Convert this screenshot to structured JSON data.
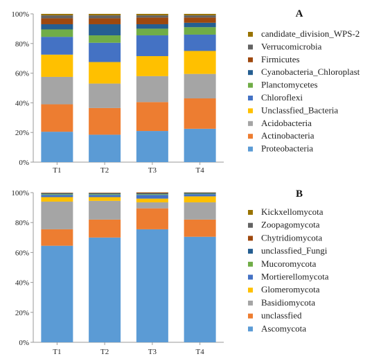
{
  "chart_data": [
    {
      "type": "bar",
      "stacked": true,
      "panel_label": "A",
      "categories": [
        "T1",
        "T2",
        "T3",
        "T4"
      ],
      "ylim": [
        0,
        100
      ],
      "y_ticks": [
        "0%",
        "20%",
        "40%",
        "60%",
        "80%",
        "100%"
      ],
      "grid": false,
      "legend_position": "right",
      "series": [
        {
          "name": "Proteobacteria",
          "color": "#5B9BD5",
          "values": [
            20.5,
            18.5,
            21,
            22.5
          ]
        },
        {
          "name": "Actinobacteria",
          "color": "#ED7D31",
          "values": [
            18.5,
            18,
            19.5,
            20.5
          ]
        },
        {
          "name": "Acidobacteria",
          "color": "#A5A5A5",
          "values": [
            18.5,
            16.5,
            17.5,
            16.5
          ]
        },
        {
          "name": "Unclassfied_Bacteria",
          "color": "#FFC000",
          "values": [
            15,
            14.5,
            13.5,
            15.5
          ]
        },
        {
          "name": "Chloroflexi",
          "color": "#4472C4",
          "values": [
            12,
            13,
            14,
            11
          ]
        },
        {
          "name": "Planctomycetes",
          "color": "#70AD47",
          "values": [
            5,
            5,
            4.5,
            5
          ]
        },
        {
          "name": "Cyanobacteria_Chloroplast",
          "color": "#255E91",
          "values": [
            3.5,
            7.5,
            3,
            3
          ]
        },
        {
          "name": "Firmicutes",
          "color": "#9E480E",
          "values": [
            4,
            4,
            4.5,
            3.5
          ]
        },
        {
          "name": "Verrucomicrobia",
          "color": "#636363",
          "values": [
            2,
            2,
            1.5,
            1.5
          ]
        },
        {
          "name": "candidate_division_WPS-2",
          "color": "#997300",
          "values": [
            1,
            1,
            1,
            1
          ]
        }
      ]
    },
    {
      "type": "bar",
      "stacked": true,
      "panel_label": "B",
      "categories": [
        "T1",
        "T2",
        "T3",
        "T4"
      ],
      "ylim": [
        0,
        100
      ],
      "y_ticks": [
        "0%",
        "20%",
        "40%",
        "60%",
        "80%",
        "100%"
      ],
      "grid": false,
      "legend_position": "right",
      "series": [
        {
          "name": "Ascomycota",
          "color": "#5B9BD5",
          "values": [
            64.5,
            70,
            75.5,
            70.5
          ]
        },
        {
          "name": "unclassfied",
          "color": "#ED7D31",
          "values": [
            11,
            12,
            14,
            11.5
          ]
        },
        {
          "name": "Basidiomycota",
          "color": "#A5A5A5",
          "values": [
            18.5,
            12.5,
            4,
            11.5
          ]
        },
        {
          "name": "Glomeromycota",
          "color": "#FFC000",
          "values": [
            3,
            2.5,
            2.5,
            4
          ]
        },
        {
          "name": "Mortierellomycota",
          "color": "#4472C4",
          "values": [
            1.5,
            1.5,
            2.5,
            1.5
          ]
        },
        {
          "name": "Mucoromycota",
          "color": "#70AD47",
          "values": [
            0.5,
            0.5,
            0.5,
            0.3
          ]
        },
        {
          "name": "unclassfied_Fungi",
          "color": "#255E91",
          "values": [
            0.5,
            0.5,
            0.5,
            0.5
          ]
        },
        {
          "name": "Chytridiomycota",
          "color": "#9E480E",
          "values": [
            0.3,
            0.3,
            0.5,
            0.2
          ]
        },
        {
          "name": "Zoopagomycota",
          "color": "#636363",
          "values": [
            0.1,
            0.1,
            0.1,
            0.1
          ]
        },
        {
          "name": "Kickxellomycota",
          "color": "#997300",
          "values": [
            0.1,
            0.1,
            0.1,
            0.1
          ]
        }
      ]
    }
  ]
}
